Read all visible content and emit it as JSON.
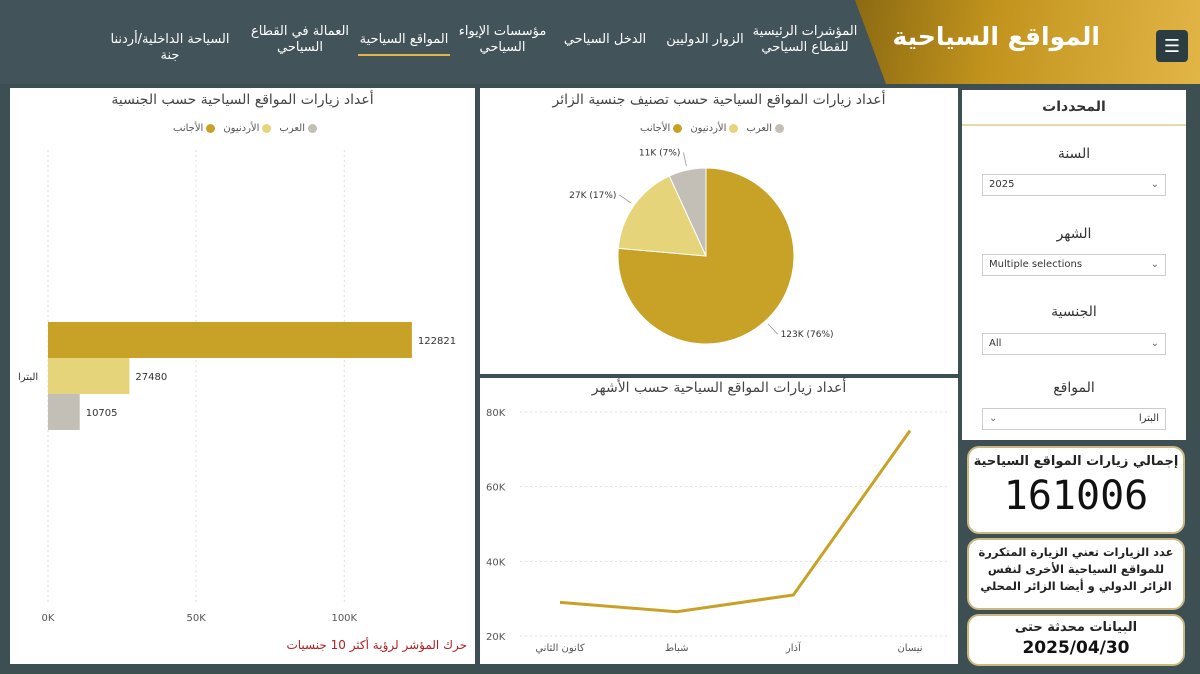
{
  "header": {
    "title": "المواقع السياحية",
    "menu_icon": "hamburger-icon",
    "nav": [
      {
        "label": "المؤشرات الرئيسية للقطاع السياحي"
      },
      {
        "label": "الزوار الدوليين"
      },
      {
        "label": "الدخل السياحي"
      },
      {
        "label": "مؤسسات الإيواء السياحي"
      },
      {
        "label": "المواقع السياحية"
      },
      {
        "label": "العمالة في القطاع السياحي"
      },
      {
        "label": "السياحة الداخلية/أردننا جنة"
      }
    ]
  },
  "filters": {
    "title": "المحددات",
    "year": {
      "label": "السنة",
      "value": "2025"
    },
    "month": {
      "label": "الشهر",
      "value": "Multiple selections"
    },
    "nationality": {
      "label": "الجنسية",
      "value": "All"
    },
    "sites": {
      "label": "المواقع",
      "value": "البترا"
    }
  },
  "total_card": {
    "label": "إجمالي زيارات المواقع السياحية",
    "value": "161006"
  },
  "note_card": {
    "text": "عدد الزيارات تعني الزيارة المتكررة للمواقع السياحية الأخرى لنفس الزائر الدولي و أيضا الزائر المحلي"
  },
  "update_card": {
    "label": "البيانات محدثة حتى",
    "date": "2025/04/30"
  },
  "bar_hint": "حرك المؤشر لرؤية أكثر 10 جنسيات",
  "colors": {
    "foreigners": "#c8a227",
    "jordanians": "#e6d47a",
    "arabs": "#c3bfb7",
    "accent": "#e2b547"
  },
  "chart_data": [
    {
      "type": "bar",
      "title": "أعداد زيارات المواقع السياحية حسب الجنسية",
      "orientation": "horizontal",
      "categories": [
        "البترا"
      ],
      "series": [
        {
          "name": "الأجانب",
          "values": [
            122821
          ]
        },
        {
          "name": "الأردنيون",
          "values": [
            27480
          ]
        },
        {
          "name": "العرب",
          "values": [
            10705
          ]
        }
      ],
      "x_ticks": [
        "0K",
        "50K",
        "100K"
      ],
      "xlim": [
        0,
        135000
      ],
      "data_labels": [
        "122821",
        "27480",
        "10705"
      ],
      "legend": "top"
    },
    {
      "type": "pie",
      "title": "أعداد زيارات المواقع السياحية حسب تصنيف جنسية الزائر",
      "slices": [
        {
          "name": "الأجانب",
          "value": 123000,
          "label": "123K (76%)"
        },
        {
          "name": "الأردنيون",
          "value": 27000,
          "label": "27K (17%)"
        },
        {
          "name": "العرب",
          "value": 11000,
          "label": "11K (7%)"
        }
      ],
      "legend": "top"
    },
    {
      "type": "line",
      "title": "أعداد زيارات المواقع السياحية حسب الأشهر",
      "categories": [
        "كانون الثاني",
        "شباط",
        "آذار",
        "نيسان"
      ],
      "values": [
        29000,
        26500,
        31000,
        75000
      ],
      "y_ticks": [
        "20K",
        "40K",
        "60K",
        "80K"
      ],
      "ylim": [
        20000,
        80000
      ]
    }
  ]
}
